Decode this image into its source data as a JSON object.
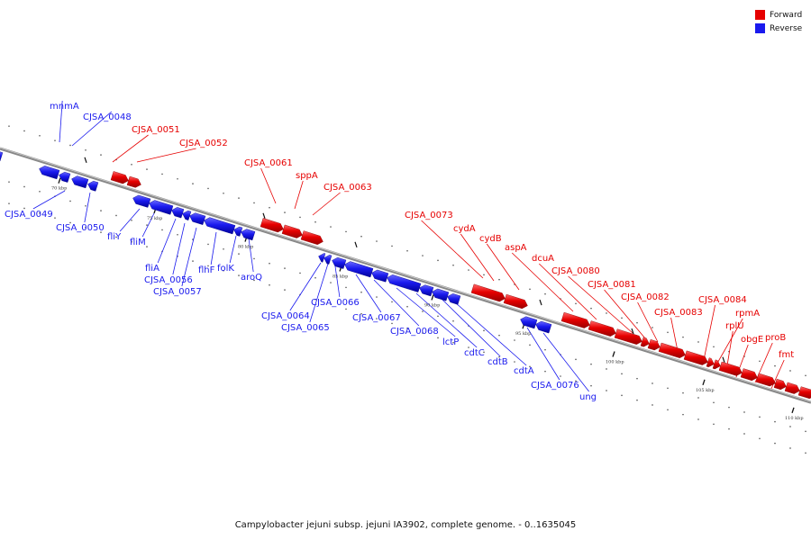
{
  "caption": "Campylobacter jejuni subsp. jejuni IA3902, complete genome. - 0..1635045",
  "colors": {
    "forward": "#e60000",
    "reverse": "#1a1aee",
    "backbone": "#777777"
  },
  "legend": [
    {
      "label": "Forward",
      "strand": "forward"
    },
    {
      "label": "Reverse",
      "strand": "reverse"
    }
  ],
  "scale": [
    {
      "kbp": 70,
      "label": "70 kbp"
    },
    {
      "kbp": 75,
      "label": "75 kbp"
    },
    {
      "kbp": 80,
      "label": "80 kbp"
    },
    {
      "kbp": 85,
      "label": "85 kbp"
    },
    {
      "kbp": 90,
      "label": "90 kbp"
    },
    {
      "kbp": 95,
      "label": "95 kbp"
    },
    {
      "kbp": 100,
      "label": "100 kbp"
    },
    {
      "kbp": 105,
      "label": "105 kbp"
    },
    {
      "kbp": 110,
      "label": "110 kbp"
    }
  ],
  "features": [
    {
      "name": "mnmA",
      "strand": "reverse"
    },
    {
      "name": "CJSA_0048",
      "strand": "reverse"
    },
    {
      "name": "CJSA_0049",
      "strand": "reverse"
    },
    {
      "name": "CJSA_0050",
      "strand": "reverse"
    },
    {
      "name": "CJSA_0051",
      "strand": "forward"
    },
    {
      "name": "CJSA_0052",
      "strand": "forward"
    },
    {
      "name": "fliY",
      "strand": "reverse"
    },
    {
      "name": "fliM",
      "strand": "reverse"
    },
    {
      "name": "fliA",
      "strand": "reverse"
    },
    {
      "name": "CJSA_0056",
      "strand": "reverse"
    },
    {
      "name": "CJSA_0057",
      "strand": "reverse"
    },
    {
      "name": "flhF",
      "strand": "reverse"
    },
    {
      "name": "folK",
      "strand": "reverse"
    },
    {
      "name": "aroQ",
      "strand": "reverse"
    },
    {
      "name": "CJSA_0061",
      "strand": "forward"
    },
    {
      "name": "sppA",
      "strand": "forward"
    },
    {
      "name": "CJSA_0063",
      "strand": "forward"
    },
    {
      "name": "CJSA_0064",
      "strand": "reverse"
    },
    {
      "name": "CJSA_0065",
      "strand": "reverse"
    },
    {
      "name": "CJSA_0066",
      "strand": "reverse"
    },
    {
      "name": "CJSA_0067",
      "strand": "reverse"
    },
    {
      "name": "CJSA_0068",
      "strand": "reverse"
    },
    {
      "name": "lctP",
      "strand": "reverse"
    },
    {
      "name": "cdtC",
      "strand": "reverse"
    },
    {
      "name": "cdtB",
      "strand": "reverse"
    },
    {
      "name": "cdtA",
      "strand": "reverse"
    },
    {
      "name": "CJSA_0073",
      "strand": "forward"
    },
    {
      "name": "cydA",
      "strand": "forward"
    },
    {
      "name": "cydB",
      "strand": "forward"
    },
    {
      "name": "CJSA_0076",
      "strand": "reverse"
    },
    {
      "name": "ung",
      "strand": "reverse"
    },
    {
      "name": "aspA",
      "strand": "forward"
    },
    {
      "name": "dcuA",
      "strand": "forward"
    },
    {
      "name": "CJSA_0080",
      "strand": "forward"
    },
    {
      "name": "CJSA_0081",
      "strand": "forward"
    },
    {
      "name": "CJSA_0082",
      "strand": "forward"
    },
    {
      "name": "CJSA_0083",
      "strand": "forward"
    },
    {
      "name": "CJSA_0084",
      "strand": "forward"
    },
    {
      "name": "rpmA",
      "strand": "forward"
    },
    {
      "name": "rplU",
      "strand": "forward"
    },
    {
      "name": "obgE",
      "strand": "forward"
    },
    {
      "name": "proB",
      "strand": "forward"
    },
    {
      "name": "fmt",
      "strand": "forward"
    }
  ]
}
